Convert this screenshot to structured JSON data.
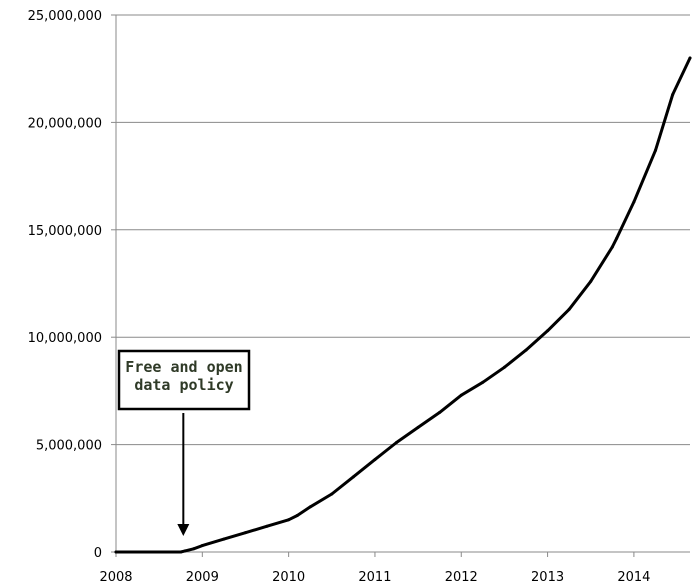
{
  "chart_data": {
    "type": "line",
    "title": "",
    "xlabel": "",
    "ylabel": "",
    "xlim": [
      2008,
      2014.65
    ],
    "ylim": [
      0,
      25000000
    ],
    "x_ticks": [
      2008,
      2009,
      2010,
      2011,
      2012,
      2013,
      2014
    ],
    "x_tick_labels": [
      "2008",
      "2009",
      "2010",
      "2011",
      "2012",
      "2013",
      "2014"
    ],
    "y_ticks": [
      0,
      5000000,
      10000000,
      15000000,
      20000000,
      25000000
    ],
    "y_tick_labels": [
      "0",
      "5,000,000",
      "10,000,000",
      "15,000,000",
      "20,000,000",
      "25,000,000"
    ],
    "grid": "horizontal",
    "series": [
      {
        "color": "#000000",
        "x": [
          2008.0,
          2008.5,
          2008.75,
          2008.8,
          2008.9,
          2009.0,
          2009.25,
          2009.5,
          2009.75,
          2010.0,
          2010.1,
          2010.25,
          2010.5,
          2010.75,
          2011.0,
          2011.25,
          2011.5,
          2011.75,
          2012.0,
          2012.25,
          2012.5,
          2012.75,
          2013.0,
          2013.25,
          2013.5,
          2013.75,
          2013.8,
          2014.0,
          2014.25,
          2014.45,
          2014.65
        ],
        "y": [
          0,
          0,
          0,
          50000,
          150000,
          300000,
          600000,
          900000,
          1200000,
          1500000,
          1700000,
          2100000,
          2700000,
          3500000,
          4300000,
          5100000,
          5800000,
          6500000,
          7300000,
          7900000,
          8600000,
          9400000,
          10300000,
          11300000,
          12600000,
          14200000,
          14600000,
          16300000,
          18700000,
          21300000,
          23000000
        ]
      }
    ],
    "annotations": [
      {
        "lines": [
          "Free and open",
          "data policy"
        ],
        "arrow_to": {
          "x": 2008.78,
          "y": 0
        }
      }
    ]
  }
}
